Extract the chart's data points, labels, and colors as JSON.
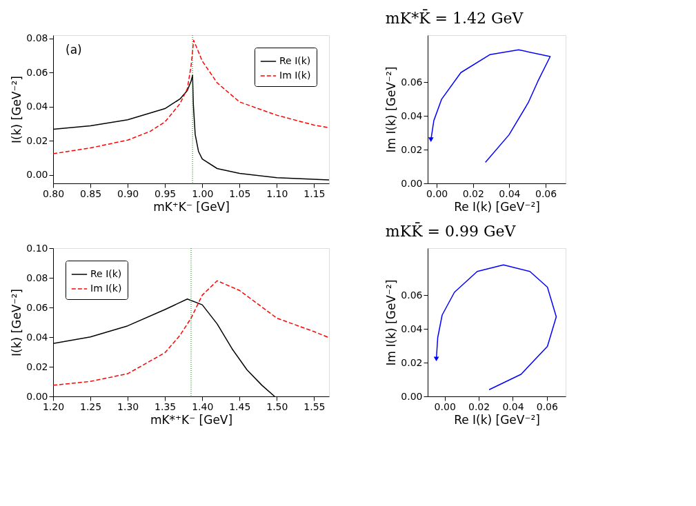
{
  "chart_data": [
    {
      "type": "line",
      "xlabel": "mK⁺K⁻ [GeV]",
      "ylabel": "I(k) [GeV⁻²]",
      "annotations": [
        "(a)"
      ],
      "xlim": [
        0.8,
        1.17
      ],
      "xticks": [
        {
          "value": 0.8,
          "label": "0.80"
        },
        0.85,
        {
          "value": 0.9,
          "label": "0.90"
        },
        0.95,
        {
          "value": 1.0,
          "label": "1.00"
        },
        1.05,
        {
          "value": 1.1,
          "label": "1.10"
        },
        1.15
      ],
      "ylim": [
        -0.005,
        0.082
      ],
      "yticks": [
        {
          "value": 0,
          "label": "0.00"
        },
        0.02,
        0.04,
        0.06,
        {
          "value": 0.08,
          "label": "0.08"
        }
      ],
      "legend": "top right",
      "grid": false,
      "ref_lines": [
        {
          "axis": "x",
          "value": 0.987,
          "color": "#2ca02c",
          "line_style": "dotted"
        }
      ],
      "series": [
        {
          "name": "Re I(k)",
          "color": "#000000",
          "line_style": "solid",
          "x": [
            0.8,
            0.85,
            0.9,
            0.95,
            0.97,
            0.98,
            0.985,
            0.987,
            0.988,
            0.9905,
            0.995,
            1.0,
            1.02,
            1.05,
            1.1,
            1.17
          ],
          "values": [
            0.0268,
            0.0288,
            0.0323,
            0.0389,
            0.0445,
            0.0495,
            0.055,
            0.0584,
            0.0417,
            0.0238,
            0.0137,
            0.0093,
            0.0037,
            0.0009,
            -0.0017,
            -0.003
          ]
        },
        {
          "name": "Im I(k)",
          "color": "#ff0000",
          "line_style": "dashed",
          "x": [
            0.8,
            0.85,
            0.9,
            0.93,
            0.95,
            0.97,
            0.98,
            0.985,
            0.9885,
            0.99,
            1.0,
            1.02,
            1.05,
            1.1,
            1.15,
            1.17
          ],
          "values": [
            0.0124,
            0.0158,
            0.0204,
            0.0255,
            0.0311,
            0.0417,
            0.0506,
            0.064,
            0.079,
            0.0774,
            0.0668,
            0.054,
            0.0428,
            0.035,
            0.0292,
            0.0277
          ]
        }
      ]
    },
    {
      "type": "line",
      "title": "mK*K̄ = 1.42 GeV",
      "xlabel": "Re I(k) [GeV⁻²]",
      "ylabel": "Im I(k) [GeV⁻²]",
      "xlim": [
        -0.005,
        0.071
      ],
      "xticks": [
        {
          "value": 0,
          "label": "0.00"
        },
        0.02,
        0.04,
        0.06
      ],
      "ylim": [
        0,
        0.088
      ],
      "yticks": [
        {
          "value": 0,
          "label": "0.00"
        },
        0.02,
        0.04,
        0.06
      ],
      "grid": false,
      "series": [
        {
          "color": "#0000ff",
          "line_style": "solid",
          "x": [
            0.0268,
            0.0398,
            0.0504,
            0.0557,
            0.0625,
            0.0451,
            0.0292,
            0.0133,
            0.0027,
            -0.0016,
            -0.0032
          ],
          "values": [
            0.0125,
            0.0288,
            0.0479,
            0.0606,
            0.0753,
            0.0793,
            0.0764,
            0.0658,
            0.05,
            0.0373,
            0.0259
          ]
        }
      ]
    },
    {
      "type": "line",
      "xlabel": "mK*⁺K⁻ [GeV]",
      "ylabel": "I(k) [GeV⁻²]",
      "xlim": [
        1.2,
        1.57
      ],
      "xticks": [
        {
          "value": 1.2,
          "label": "1.20"
        },
        1.25,
        {
          "value": 1.3,
          "label": "1.30"
        },
        1.35,
        {
          "value": 1.4,
          "label": "1.40"
        },
        1.45,
        {
          "value": 1.5,
          "label": "1.50"
        },
        1.55
      ],
      "ylim": [
        0,
        0.1
      ],
      "yticks": [
        {
          "value": 0,
          "label": "0.00"
        },
        0.02,
        0.04,
        0.06,
        0.08,
        {
          "value": 0.1,
          "label": "0.10"
        }
      ],
      "legend": "top left",
      "grid": false,
      "ref_lines": [
        {
          "axis": "x",
          "value": 1.385,
          "color": "#2ca02c",
          "line_style": "dotted"
        }
      ],
      "series": [
        {
          "name": "Re I(k)",
          "color": "#000000",
          "line_style": "solid",
          "x": [
            1.2,
            1.25,
            1.3,
            1.35,
            1.38,
            1.4,
            1.42,
            1.44,
            1.46,
            1.48,
            1.497
          ],
          "values": [
            0.0357,
            0.0401,
            0.0476,
            0.0586,
            0.0657,
            0.0618,
            0.0489,
            0.0321,
            0.0179,
            0.0075,
            0.0
          ]
        },
        {
          "name": "Im I(k)",
          "color": "#ff0000",
          "line_style": "dashed",
          "x": [
            1.2,
            1.25,
            1.3,
            1.35,
            1.37,
            1.385,
            1.4,
            1.42,
            1.45,
            1.5,
            1.55,
            1.57
          ],
          "values": [
            0.0075,
            0.0101,
            0.0153,
            0.0295,
            0.0411,
            0.0528,
            0.0683,
            0.078,
            0.0715,
            0.0528,
            0.0437,
            0.0396
          ]
        }
      ]
    },
    {
      "type": "line",
      "title": "mKK̄ = 0.99 GeV",
      "xlabel": "Re I(k) [GeV⁻²]",
      "ylabel": "Im I(k) [GeV⁻²]",
      "xlim": [
        -0.01,
        0.071
      ],
      "xticks": [
        {
          "value": 0,
          "label": "0.00"
        },
        0.02,
        0.04,
        0.06
      ],
      "ylim": [
        0,
        0.088
      ],
      "yticks": [
        {
          "value": 0,
          "label": "0.00"
        },
        0.02,
        0.04,
        0.06
      ],
      "grid": false,
      "series": [
        {
          "color": "#0000ff",
          "line_style": "solid",
          "x": [
            0.0261,
            0.0448,
            0.0603,
            0.0655,
            0.0603,
            0.05,
            0.0345,
            0.0191,
            0.0057,
            -0.0015,
            -0.0041,
            -0.0049
          ],
          "values": [
            0.004,
            0.0131,
            0.0297,
            0.0473,
            0.0649,
            0.0742,
            0.0781,
            0.0742,
            0.0618,
            0.0483,
            0.0349,
            0.0222
          ]
        }
      ]
    }
  ]
}
